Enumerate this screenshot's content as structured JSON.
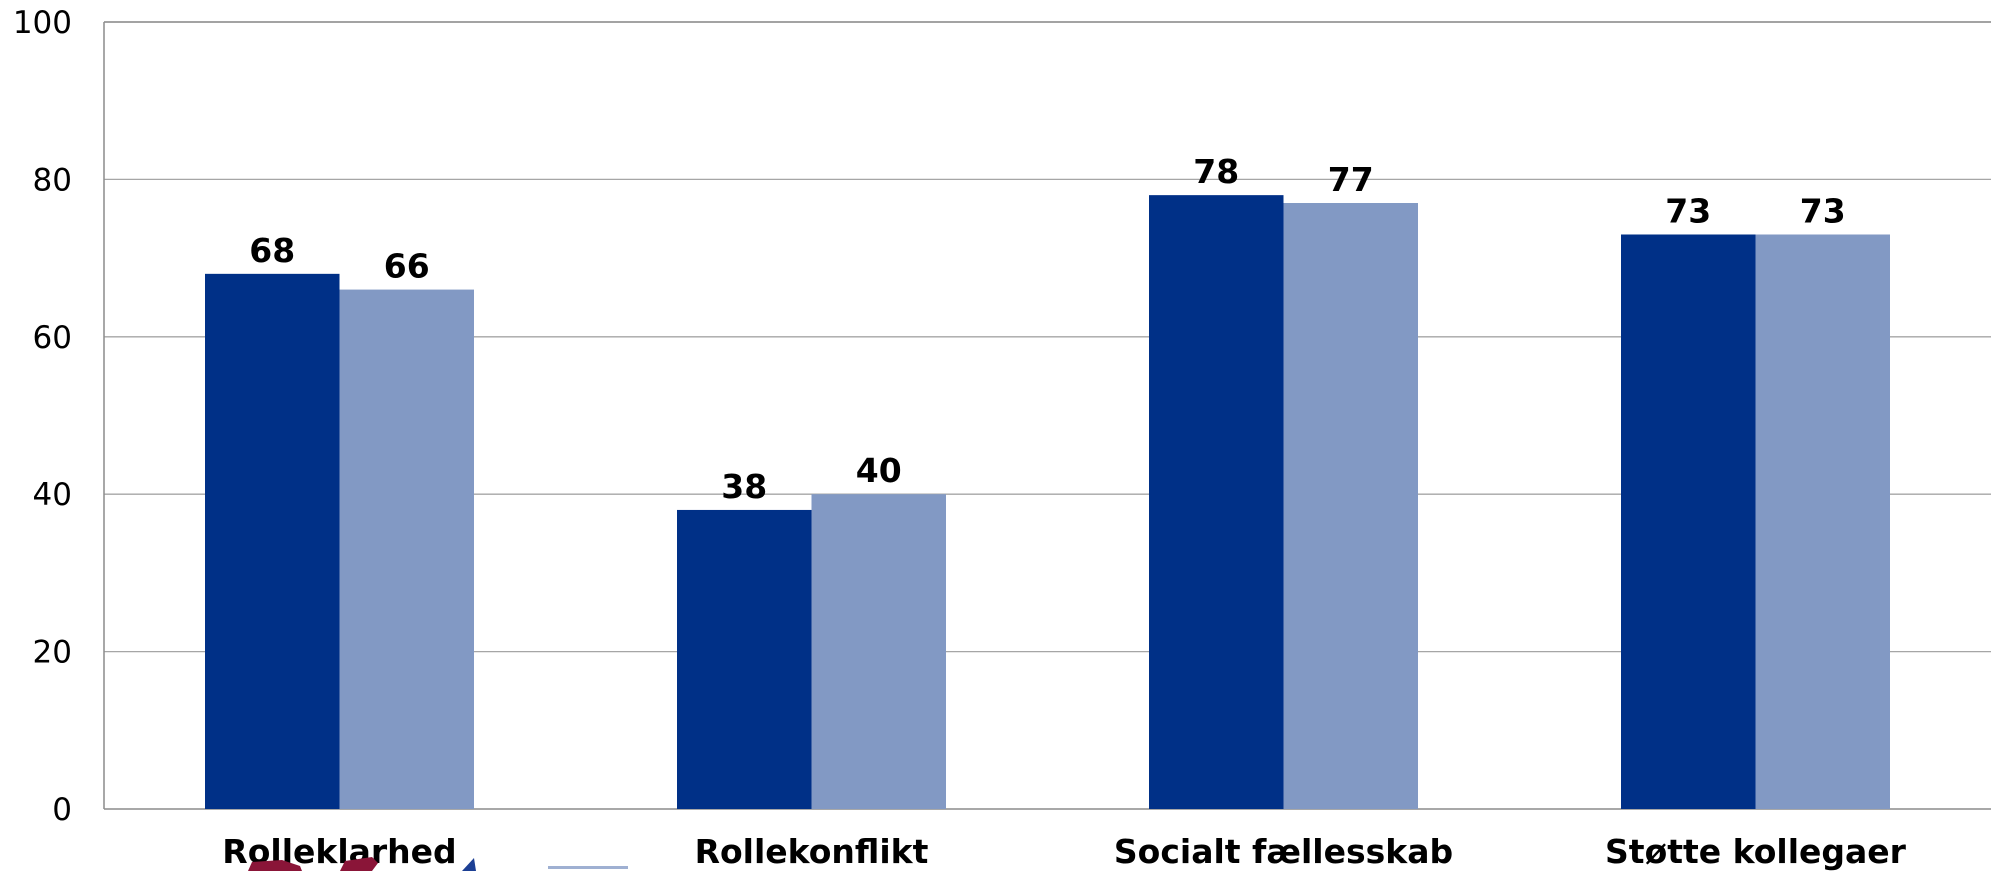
{
  "chart_data": {
    "type": "bar",
    "categories": [
      "Rolleklarhed",
      "Rollekonflikt",
      "Socialt fællesskab",
      "Støtte kollegaer"
    ],
    "series": [
      {
        "values": [
          68,
          38,
          78,
          73
        ],
        "color": "#003087"
      },
      {
        "values": [
          66,
          40,
          77,
          73
        ],
        "color": "#8299c4"
      }
    ],
    "yticks": [
      0,
      20,
      40,
      60,
      80,
      100
    ],
    "ylim": [
      0,
      100
    ],
    "grid": true,
    "legend": "none",
    "data_labels": true
  }
}
